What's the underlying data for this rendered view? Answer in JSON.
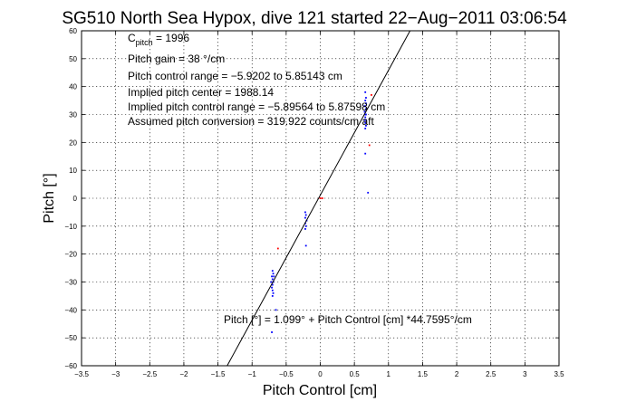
{
  "chart_data": {
    "type": "scatter",
    "title": "SG510 North Sea Hypox, dive 121 started 22−Aug−2011 03:06:54",
    "xlabel": "Pitch Control [cm]",
    "ylabel": "Pitch [°]",
    "xlim": [
      -3.5,
      3.5
    ],
    "ylim": [
      -60,
      60
    ],
    "xticks": [
      -3.5,
      -3,
      -2.5,
      -2,
      -1.5,
      -1,
      -0.5,
      0,
      0.5,
      1,
      1.5,
      2,
      2.5,
      3,
      3.5
    ],
    "yticks": [
      -60,
      -50,
      -40,
      -30,
      -20,
      -10,
      0,
      10,
      20,
      30,
      40,
      50,
      60
    ],
    "xtick_labels": [
      "−3.5",
      "−3",
      "−2.5",
      "−2",
      "−1.5",
      "−1",
      "−0.5",
      "0",
      "0.5",
      "1",
      "1.5",
      "2",
      "2.5",
      "3",
      "3.5"
    ],
    "ytick_labels": [
      "−60",
      "−50",
      "−40",
      "−30",
      "−20",
      "−10",
      "0",
      "10",
      "20",
      "30",
      "40",
      "50",
      "60"
    ],
    "grid": true,
    "fit_line": {
      "intercept": 1.099,
      "slope": 44.7595,
      "color": "#000000"
    },
    "annotations": {
      "c_pitch_main": "C",
      "c_pitch_sub": "pitch",
      "c_pitch_value": " = 1996",
      "line2": "Pitch gain = 38 °/cm",
      "line3": "Pitch control range = −5.9202 to 5.85143 cm",
      "line4": "Implied pitch center = 1988.14",
      "line5": "Implied pitch control range = −5.89564 to 5.87598 cm",
      "line6": "Assumed pitch conversion = 319.922 counts/cm aft",
      "fit_label": "Pitch [°] = 1.099° + Pitch Control [cm] *44.7595°/cm"
    },
    "series": [
      {
        "color": "#0000ff",
        "points": [
          [
            0.66,
            38
          ],
          [
            0.67,
            36
          ],
          [
            0.66,
            35
          ],
          [
            0.67,
            34
          ],
          [
            0.65,
            33
          ],
          [
            0.66,
            33
          ],
          [
            0.67,
            32
          ],
          [
            0.66,
            31
          ],
          [
            0.65,
            31
          ],
          [
            0.67,
            30
          ],
          [
            0.66,
            30
          ],
          [
            0.66,
            29
          ],
          [
            0.67,
            28
          ],
          [
            0.65,
            28
          ],
          [
            0.66,
            27
          ],
          [
            0.67,
            26
          ],
          [
            0.66,
            25
          ],
          [
            0.66,
            16
          ],
          [
            0.7,
            2
          ],
          [
            -0.22,
            -5
          ],
          [
            -0.21,
            -6
          ],
          [
            -0.22,
            -7
          ],
          [
            -0.2,
            -8
          ],
          [
            -0.22,
            -9
          ],
          [
            -0.21,
            -10
          ],
          [
            -0.22,
            -11
          ],
          [
            -0.21,
            -17
          ],
          [
            -0.7,
            -26
          ],
          [
            -0.69,
            -27
          ],
          [
            -0.71,
            -28
          ],
          [
            -0.7,
            -29
          ],
          [
            -0.69,
            -30
          ],
          [
            -0.7,
            -31
          ],
          [
            -0.71,
            -32
          ],
          [
            -0.7,
            -33
          ],
          [
            -0.69,
            -34
          ],
          [
            -0.7,
            -35
          ],
          [
            -0.72,
            -30
          ],
          [
            -0.68,
            -28
          ],
          [
            -0.71,
            -48
          ],
          [
            -0.65,
            -40
          ]
        ]
      },
      {
        "color": "#ff0000",
        "points": [
          [
            0.0,
            0
          ],
          [
            0.03,
            0
          ],
          [
            0.72,
            19
          ],
          [
            -0.62,
            -18
          ],
          [
            0.75,
            37
          ]
        ]
      }
    ]
  }
}
